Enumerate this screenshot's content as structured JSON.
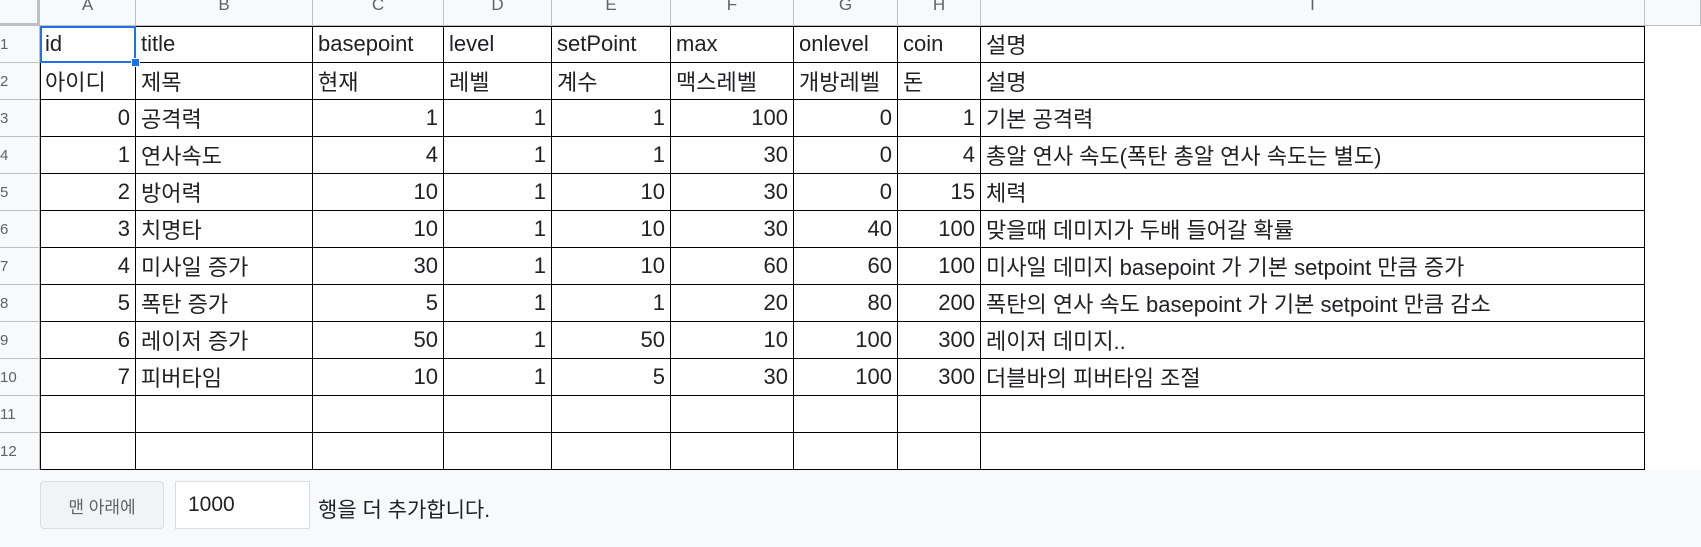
{
  "column_headers": [
    "A",
    "B",
    "C",
    "D",
    "E",
    "F",
    "G",
    "H",
    "I"
  ],
  "row_numbers": [
    "1",
    "2",
    "3",
    "4",
    "5",
    "6",
    "7",
    "8",
    "9",
    "10",
    "11",
    "12"
  ],
  "rows": [
    [
      "id",
      "title",
      "basepoint",
      "level",
      "setPoint",
      "max",
      "onlevel",
      "coin",
      "설명"
    ],
    [
      "아이디",
      "제목",
      "현재",
      "레벨",
      "계수",
      "맥스레벨",
      "개방레벨",
      "돈",
      "설명"
    ],
    [
      "0",
      "공격력",
      "1",
      "1",
      "1",
      "100",
      "0",
      "1",
      "기본 공격력"
    ],
    [
      "1",
      "연사속도",
      "4",
      "1",
      "1",
      "30",
      "0",
      "4",
      "총알 연사 속도(폭탄 총알 연사 속도는 별도)"
    ],
    [
      "2",
      "방어력",
      "10",
      "1",
      "10",
      "30",
      "0",
      "15",
      "체력"
    ],
    [
      "3",
      "치명타",
      "10",
      "1",
      "10",
      "30",
      "40",
      "100",
      "맞을때 데미지가 두배 들어갈 확률"
    ],
    [
      "4",
      "미사일 증가",
      "30",
      "1",
      "10",
      "60",
      "60",
      "100",
      "미사일 데미지 basepoint 가 기본 setpoint 만큼 증가"
    ],
    [
      "5",
      "폭탄 증가",
      "5",
      "1",
      "1",
      "20",
      "80",
      "200",
      "폭탄의 연사 속도  basepoint 가 기본 setpoint 만큼 감소"
    ],
    [
      "6",
      "레이저 증가",
      "50",
      "1",
      "50",
      "10",
      "100",
      "300",
      "레이저 데미지.."
    ],
    [
      "7",
      "피버타임",
      "10",
      "1",
      "5",
      "30",
      "100",
      "300",
      "더블바의 피버타임 조절"
    ],
    [
      "",
      "",
      "",
      "",
      "",
      "",
      "",
      "",
      ""
    ],
    [
      "",
      "",
      "",
      "",
      "",
      "",
      "",
      "",
      ""
    ]
  ],
  "footer": {
    "add_button_label": "맨 아래에",
    "rows_value": "1000",
    "add_suffix_text": "행을 더 추가합니다."
  }
}
